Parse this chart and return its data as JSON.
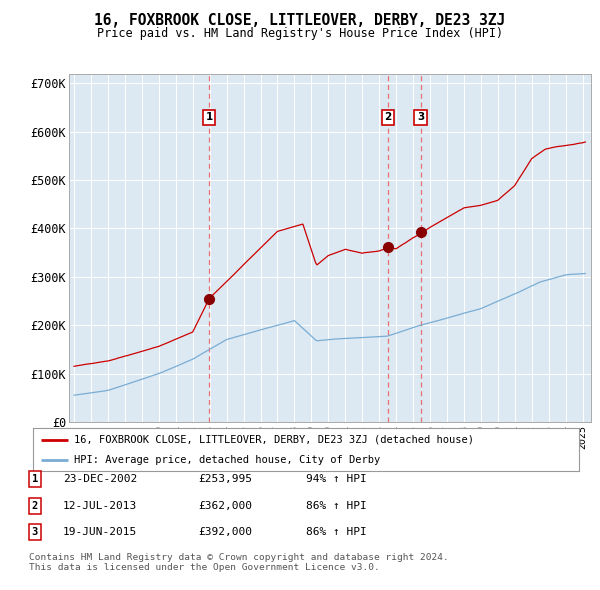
{
  "title": "16, FOXBROOK CLOSE, LITTLEOVER, DERBY, DE23 3ZJ",
  "subtitle": "Price paid vs. HM Land Registry's House Price Index (HPI)",
  "legend_line1": "16, FOXBROOK CLOSE, LITTLEOVER, DERBY, DE23 3ZJ (detached house)",
  "legend_line2": "HPI: Average price, detached house, City of Derby",
  "footnote1": "Contains HM Land Registry data © Crown copyright and database right 2024.",
  "footnote2": "This data is licensed under the Open Government Licence v3.0.",
  "transactions": [
    {
      "num": 1,
      "date": "23-DEC-2002",
      "price": "£253,995",
      "hpi_pct": "94%",
      "x_year": 2002.97
    },
    {
      "num": 2,
      "date": "12-JUL-2013",
      "price": "£362,000",
      "hpi_pct": "86%",
      "x_year": 2013.53
    },
    {
      "num": 3,
      "date": "19-JUN-2015",
      "price": "£392,000",
      "hpi_pct": "86%",
      "x_year": 2015.45
    }
  ],
  "hpi_color": "#7aadd4",
  "price_color": "#cc0000",
  "bg_color": "#dce8f2",
  "grid_color": "#ffffff",
  "vline_color": "#e87070",
  "dot_color": "#880000",
  "ylim": [
    0,
    720000
  ],
  "yticks": [
    0,
    100000,
    200000,
    300000,
    400000,
    500000,
    600000,
    700000
  ],
  "xlim_start": 1994.7,
  "xlim_end": 2025.5
}
